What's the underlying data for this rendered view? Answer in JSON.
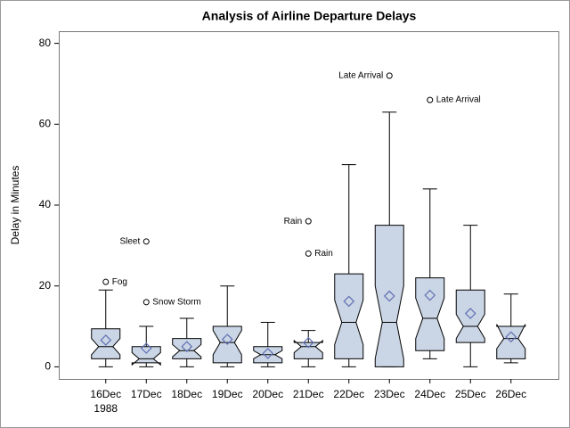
{
  "chart_data": {
    "type": "box",
    "title": "Analysis of Airline Departure Delays",
    "ylabel": "Delay in Minutes",
    "categories": [
      "16Dec",
      "17Dec",
      "18Dec",
      "19Dec",
      "20Dec",
      "21Dec",
      "22Dec",
      "23Dec",
      "24Dec",
      "25Dec",
      "26Dec"
    ],
    "x_sublabel": "1988",
    "ylim": [
      -3,
      83
    ],
    "yticks": [
      0,
      20,
      40,
      60,
      80
    ],
    "box_color": "#cad5e5",
    "mean_color": "#6270b3",
    "boxes": [
      {
        "low": 0,
        "q1": 2,
        "median": 5,
        "q3": 9.4,
        "high": 19,
        "mean": 6.6,
        "notch": [
          3,
          7
        ],
        "outliers": [
          {
            "value": 21,
            "label": "Fog",
            "side": "right"
          }
        ]
      },
      {
        "low": 0,
        "q1": 1,
        "median": 2,
        "q3": 5,
        "high": 10,
        "mean": 4.6,
        "notch": [
          0.5,
          3.5
        ],
        "outliers": [
          {
            "value": 31,
            "label": "Sleet",
            "side": "left"
          },
          {
            "value": 16,
            "label": "Snow Storm",
            "side": "right"
          }
        ]
      },
      {
        "low": 0,
        "q1": 2,
        "median": 4,
        "q3": 7,
        "high": 12,
        "mean": 5,
        "notch": [
          2.5,
          5.5
        ],
        "outliers": []
      },
      {
        "low": 0,
        "q1": 1,
        "median": 6,
        "q3": 10,
        "high": 20,
        "mean": 6.8,
        "notch": [
          3,
          9
        ],
        "outliers": []
      },
      {
        "low": 0,
        "q1": 1,
        "median": 3,
        "q3": 5,
        "high": 11,
        "mean": 3.3,
        "notch": [
          2,
          4
        ],
        "outliers": []
      },
      {
        "low": 0,
        "q1": 2,
        "median": 5,
        "q3": 6,
        "high": 9,
        "mean": 6,
        "notch": [
          3.5,
          6.5
        ],
        "outliers": [
          {
            "value": 36,
            "label": "Rain",
            "side": "left"
          },
          {
            "value": 28,
            "label": "Rain",
            "side": "right"
          }
        ]
      },
      {
        "low": 0,
        "q1": 2,
        "median": 11,
        "q3": 23,
        "high": 50,
        "mean": 16.2,
        "notch": [
          5.5,
          16.5
        ],
        "outliers": []
      },
      {
        "low": 0,
        "q1": 0,
        "median": 11,
        "q3": 35,
        "high": 63,
        "mean": 17.5,
        "notch": [
          2,
          20
        ],
        "outliers": [
          {
            "value": 72,
            "label": "Late Arrival",
            "side": "left"
          }
        ]
      },
      {
        "low": 2,
        "q1": 4,
        "median": 12,
        "q3": 22,
        "high": 44,
        "mean": 17.7,
        "notch": [
          7,
          17
        ],
        "outliers": [
          {
            "value": 66,
            "label": "Late Arrival",
            "side": "right"
          }
        ]
      },
      {
        "low": 0,
        "q1": 6,
        "median": 10,
        "q3": 19,
        "high": 35,
        "mean": 13.2,
        "notch": [
          7,
          13
        ],
        "outliers": []
      },
      {
        "low": 1,
        "q1": 2,
        "median": 7,
        "q3": 10,
        "high": 18,
        "mean": 7.4,
        "notch": [
          4.5,
          10.5
        ],
        "outliers": []
      }
    ]
  }
}
